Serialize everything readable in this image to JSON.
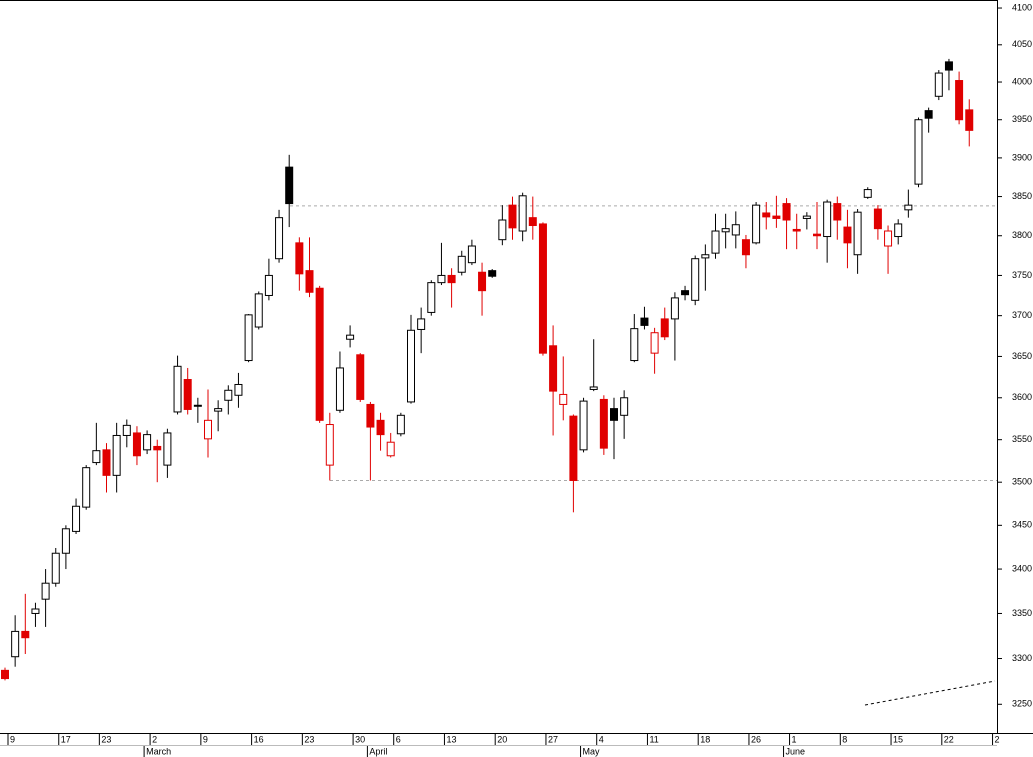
{
  "chart_data": {
    "type": "candlestick",
    "log_scale": true,
    "ylim": [
      3219,
      4111
    ],
    "yticks": [
      3250,
      3300,
      3350,
      3400,
      3450,
      3500,
      3550,
      3600,
      3650,
      3700,
      3750,
      3800,
      3850,
      3900,
      3950,
      4000,
      4050,
      4100
    ],
    "up_color": "#000000",
    "down_color": "#e00000",
    "reference_lines": [
      3838,
      3502
    ],
    "categories": [
      "9",
      null,
      null,
      null,
      null,
      "17",
      null,
      null,
      null,
      "23",
      null,
      null,
      null,
      null,
      "2",
      null,
      null,
      null,
      null,
      "9",
      null,
      null,
      null,
      null,
      "16",
      null,
      null,
      null,
      null,
      "23",
      null,
      null,
      null,
      null,
      "30",
      null,
      null,
      null,
      "6",
      null,
      null,
      null,
      null,
      "13",
      null,
      null,
      null,
      null,
      "20",
      null,
      null,
      null,
      null,
      "27",
      null,
      null,
      null,
      null,
      "4",
      null,
      null,
      null,
      null,
      "11",
      null,
      null,
      null,
      null,
      "18",
      null,
      null,
      null,
      null,
      "26",
      null,
      null,
      null,
      "1",
      null,
      null,
      null,
      null,
      "8",
      null,
      null,
      null,
      null,
      "15",
      null,
      null,
      null,
      null,
      "22",
      null,
      null,
      null,
      null,
      "2"
    ],
    "months": [
      null,
      null,
      null,
      null,
      null,
      null,
      null,
      null,
      null,
      null,
      null,
      null,
      null,
      null,
      "March",
      null,
      null,
      null,
      null,
      null,
      null,
      null,
      null,
      null,
      null,
      null,
      null,
      null,
      null,
      null,
      null,
      null,
      null,
      null,
      null,
      null,
      "April",
      null,
      null,
      null,
      null,
      null,
      null,
      null,
      null,
      null,
      null,
      null,
      null,
      null,
      null,
      null,
      null,
      null,
      null,
      null,
      null,
      "May",
      null,
      null,
      null,
      null,
      null,
      null,
      null,
      null,
      null,
      null,
      null,
      null,
      null,
      null,
      null,
      null,
      null,
      null,
      null,
      "June",
      null,
      null,
      null,
      null,
      null,
      null,
      null,
      null,
      null,
      null,
      null,
      null,
      null,
      null,
      null,
      null,
      null,
      null,
      null,
      null
    ],
    "open": [
      3287,
      3302,
      3330,
      3350,
      3366,
      3384,
      3418,
      3443,
      3471,
      3523,
      3538,
      3508,
      3555,
      3558,
      3538,
      3542,
      3520,
      3583,
      3622,
      3590,
      3551,
      3584,
      3597,
      3603,
      3645,
      3686,
      3725,
      3771,
      3888,
      3791,
      3756,
      3734,
      3520,
      3585,
      3671,
      3652,
      3592,
      3573,
      3531,
      3557,
      3595,
      3683,
      3704,
      3741,
      3750,
      3754,
      3766,
      3754,
      3756,
      3795,
      3839,
      3806,
      3823,
      3815,
      3663,
      3592,
      3578,
      3538,
      3610,
      3598,
      3587,
      3579,
      3645,
      3697,
      3654,
      3696,
      3696,
      3731,
      3719,
      3772,
      3778,
      3805,
      3801,
      3795,
      3791,
      3829,
      3825,
      3841,
      3808,
      3822,
      3802,
      3799,
      3841,
      3811,
      3776,
      3849,
      3834,
      3787,
      3799,
      3833,
      3866,
      3962,
      3981,
      4027,
      4002,
      3963,
      null,
      null
    ],
    "high": [
      3290,
      3348,
      3372,
      3362,
      3400,
      3424,
      3450,
      3481,
      3520,
      3570,
      3546,
      3570,
      3574,
      3566,
      3561,
      3550,
      3563,
      3651,
      3636,
      3600,
      3610,
      3597,
      3615,
      3630,
      3702,
      3730,
      3771,
      3833,
      3904,
      3798,
      3798,
      3737,
      3582,
      3656,
      3688,
      3654,
      3595,
      3582,
      3558,
      3582,
      3701,
      3710,
      3744,
      3791,
      3759,
      3781,
      3795,
      3766,
      3758,
      3839,
      3850,
      3855,
      3850,
      3817,
      3688,
      3650,
      3580,
      3600,
      3671,
      3603,
      3600,
      3609,
      3702,
      3711,
      3685,
      3710,
      3729,
      3737,
      3775,
      3789,
      3828,
      3828,
      3831,
      3801,
      3843,
      3843,
      3851,
      3848,
      3828,
      3830,
      3843,
      3846,
      3850,
      3833,
      3834,
      3862,
      3839,
      3813,
      3821,
      3859,
      3953,
      3966,
      4016,
      4031,
      4014,
      3977,
      null,
      null
    ],
    "low": [
      3276,
      3291,
      3305,
      3335,
      3335,
      3380,
      3400,
      3440,
      3468,
      3520,
      3488,
      3488,
      3541,
      3520,
      3533,
      3500,
      3505,
      3580,
      3580,
      3570,
      3529,
      3560,
      3580,
      3588,
      3643,
      3683,
      3719,
      3766,
      3811,
      3731,
      3723,
      3570,
      3502,
      3582,
      3661,
      3595,
      3502,
      3537,
      3529,
      3554,
      3593,
      3654,
      3700,
      3738,
      3710,
      3750,
      3763,
      3700,
      3747,
      3788,
      3795,
      3793,
      3795,
      3651,
      3555,
      3573,
      3465,
      3535,
      3608,
      3532,
      3527,
      3551,
      3643,
      3683,
      3629,
      3670,
      3645,
      3719,
      3713,
      3731,
      3771,
      3784,
      3784,
      3759,
      3789,
      3808,
      3810,
      3783,
      3783,
      3808,
      3783,
      3766,
      3795,
      3759,
      3752,
      3847,
      3795,
      3752,
      3789,
      3823,
      3862,
      3933,
      3976,
      3989,
      3944,
      3915,
      null,
      null
    ],
    "close": [
      3278,
      3330,
      3323,
      3355,
      3384,
      3418,
      3446,
      3472,
      3517,
      3537,
      3508,
      3555,
      3567,
      3531,
      3556,
      3538,
      3558,
      3638,
      3586,
      3591,
      3573,
      3587,
      3609,
      3616,
      3701,
      3727,
      3750,
      3823,
      3841,
      3752,
      3729,
      3573,
      3568,
      3636,
      3676,
      3598,
      3565,
      3556,
      3547,
      3579,
      3682,
      3696,
      3741,
      3750,
      3741,
      3774,
      3787,
      3731,
      3749,
      3820,
      3810,
      3851,
      3813,
      3654,
      3608,
      3604,
      3502,
      3596,
      3613,
      3540,
      3573,
      3600,
      3684,
      3688,
      3679,
      3674,
      3722,
      3726,
      3771,
      3776,
      3806,
      3809,
      3814,
      3776,
      3839,
      3824,
      3822,
      3820,
      3806,
      3825,
      3800,
      3843,
      3820,
      3791,
      3830,
      3859,
      3809,
      3806,
      3815,
      3839,
      3950,
      3952,
      4012,
      4016,
      3950,
      3936,
      null,
      null
    ]
  }
}
